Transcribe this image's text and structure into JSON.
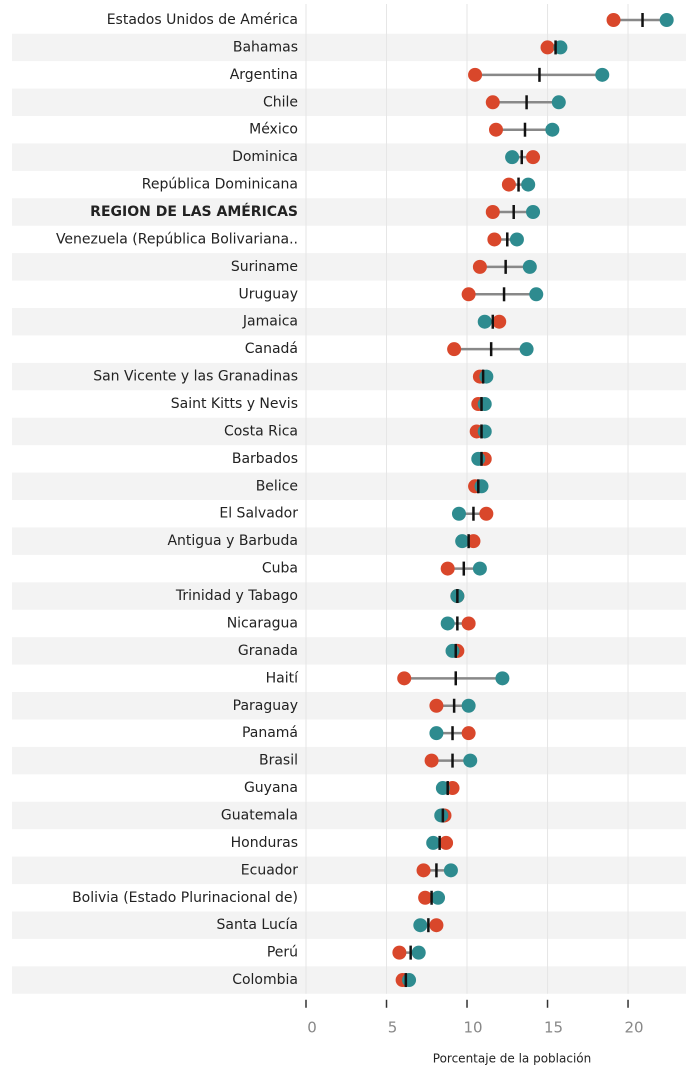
{
  "chart_data": {
    "type": "dumbbell",
    "categories": [
      "Estados Unidos de América",
      "Bahamas",
      "Argentina",
      "Chile",
      "México",
      "Dominica",
      "República Dominicana",
      "REGION DE LAS AMÉRICAS",
      "Venezuela (República Bolivariana..",
      "Suriname",
      "Uruguay",
      "Jamaica",
      "Canadá",
      "San Vicente y las Granadinas",
      "Saint Kitts y Nevis",
      "Costa Rica",
      "Barbados",
      "Belice",
      "El Salvador",
      "Antigua y Barbuda",
      "Cuba",
      "Trinidad y Tabago",
      "Nicaragua",
      "Granada",
      "Haití",
      "Paraguay",
      "Panamá",
      "Brasil",
      "Guyana",
      "Guatemala",
      "Honduras",
      "Ecuador",
      "Bolivia (Estado Plurinacional de)",
      "Santa Lucía",
      "Perú",
      "Colombia"
    ],
    "highlight": 7,
    "series": [
      {
        "color": "#d9472b",
        "marker": "dot",
        "values": [
          19.1,
          15.0,
          10.5,
          11.6,
          11.8,
          14.1,
          12.6,
          11.6,
          11.7,
          10.8,
          10.1,
          12.0,
          9.2,
          10.8,
          10.7,
          10.6,
          11.1,
          10.5,
          11.2,
          10.4,
          8.8,
          9.4,
          10.1,
          9.4,
          6.1,
          8.1,
          10.1,
          7.8,
          9.1,
          8.6,
          8.7,
          7.3,
          7.4,
          8.1,
          5.8,
          6.0
        ]
      },
      {
        "color": "#2e8b8f",
        "marker": "dot",
        "values": [
          22.4,
          15.8,
          18.4,
          15.7,
          15.3,
          12.8,
          13.8,
          14.1,
          13.1,
          13.9,
          14.3,
          11.1,
          13.7,
          11.2,
          11.1,
          11.1,
          10.7,
          10.9,
          9.5,
          9.7,
          10.8,
          9.4,
          8.8,
          9.1,
          12.2,
          10.1,
          8.1,
          10.2,
          8.5,
          8.4,
          7.9,
          9.0,
          8.2,
          7.1,
          7.0,
          6.4
        ]
      },
      {
        "color": "#111111",
        "marker": "tick",
        "values": [
          20.9,
          15.5,
          14.5,
          13.7,
          13.6,
          13.4,
          13.2,
          12.9,
          12.5,
          12.4,
          12.3,
          11.6,
          11.5,
          11.0,
          10.9,
          10.9,
          10.9,
          10.7,
          10.4,
          10.1,
          9.8,
          9.4,
          9.4,
          9.3,
          9.3,
          9.2,
          9.1,
          9.1,
          8.8,
          8.5,
          8.3,
          8.1,
          7.8,
          7.6,
          6.5,
          6.2
        ]
      }
    ],
    "xlim": [
      0,
      23.6
    ],
    "xticks": [
      0,
      5,
      10,
      15,
      20
    ],
    "xlabel": "Porcentaje de la población",
    "grid": true
  }
}
